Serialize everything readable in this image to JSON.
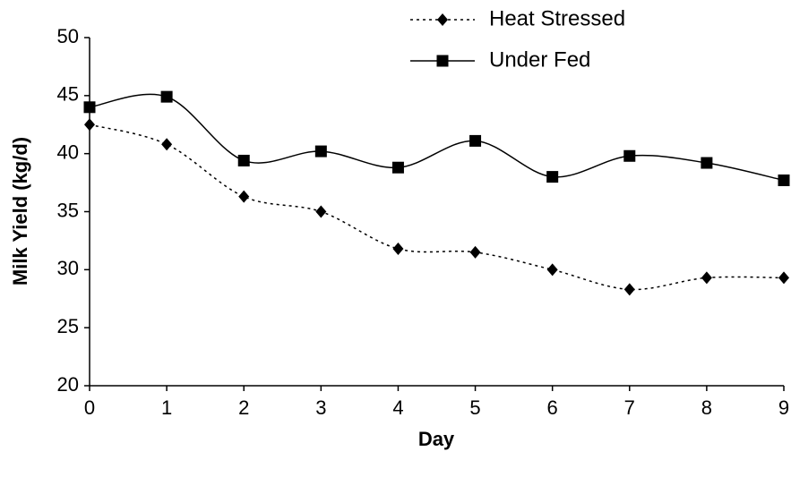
{
  "chart_data": {
    "type": "line",
    "x_label": "Day",
    "y_label": "Milk Yield (kg/d)",
    "x": [
      0,
      1,
      2,
      3,
      4,
      5,
      6,
      7,
      8,
      9
    ],
    "xlim": [
      0,
      9
    ],
    "xticks": [
      0,
      1,
      2,
      3,
      4,
      5,
      6,
      7,
      8,
      9
    ],
    "ylim": [
      20,
      50
    ],
    "yticks": [
      20,
      25,
      30,
      35,
      40,
      45,
      50
    ],
    "grid": false,
    "legend": "upper right",
    "smooth": true,
    "series": [
      {
        "name": "Heat Stressed",
        "color": "#000000",
        "dash": "dotted",
        "marker": "diamond",
        "values": [
          42.5,
          40.8,
          36.3,
          35.0,
          31.8,
          31.5,
          30.0,
          28.3,
          29.3,
          29.3
        ]
      },
      {
        "name": "Under Fed",
        "color": "#000000",
        "dash": "solid",
        "marker": "square",
        "values": [
          44.0,
          44.9,
          39.4,
          40.2,
          38.8,
          41.1,
          38.0,
          39.8,
          39.2,
          37.7
        ]
      }
    ]
  }
}
